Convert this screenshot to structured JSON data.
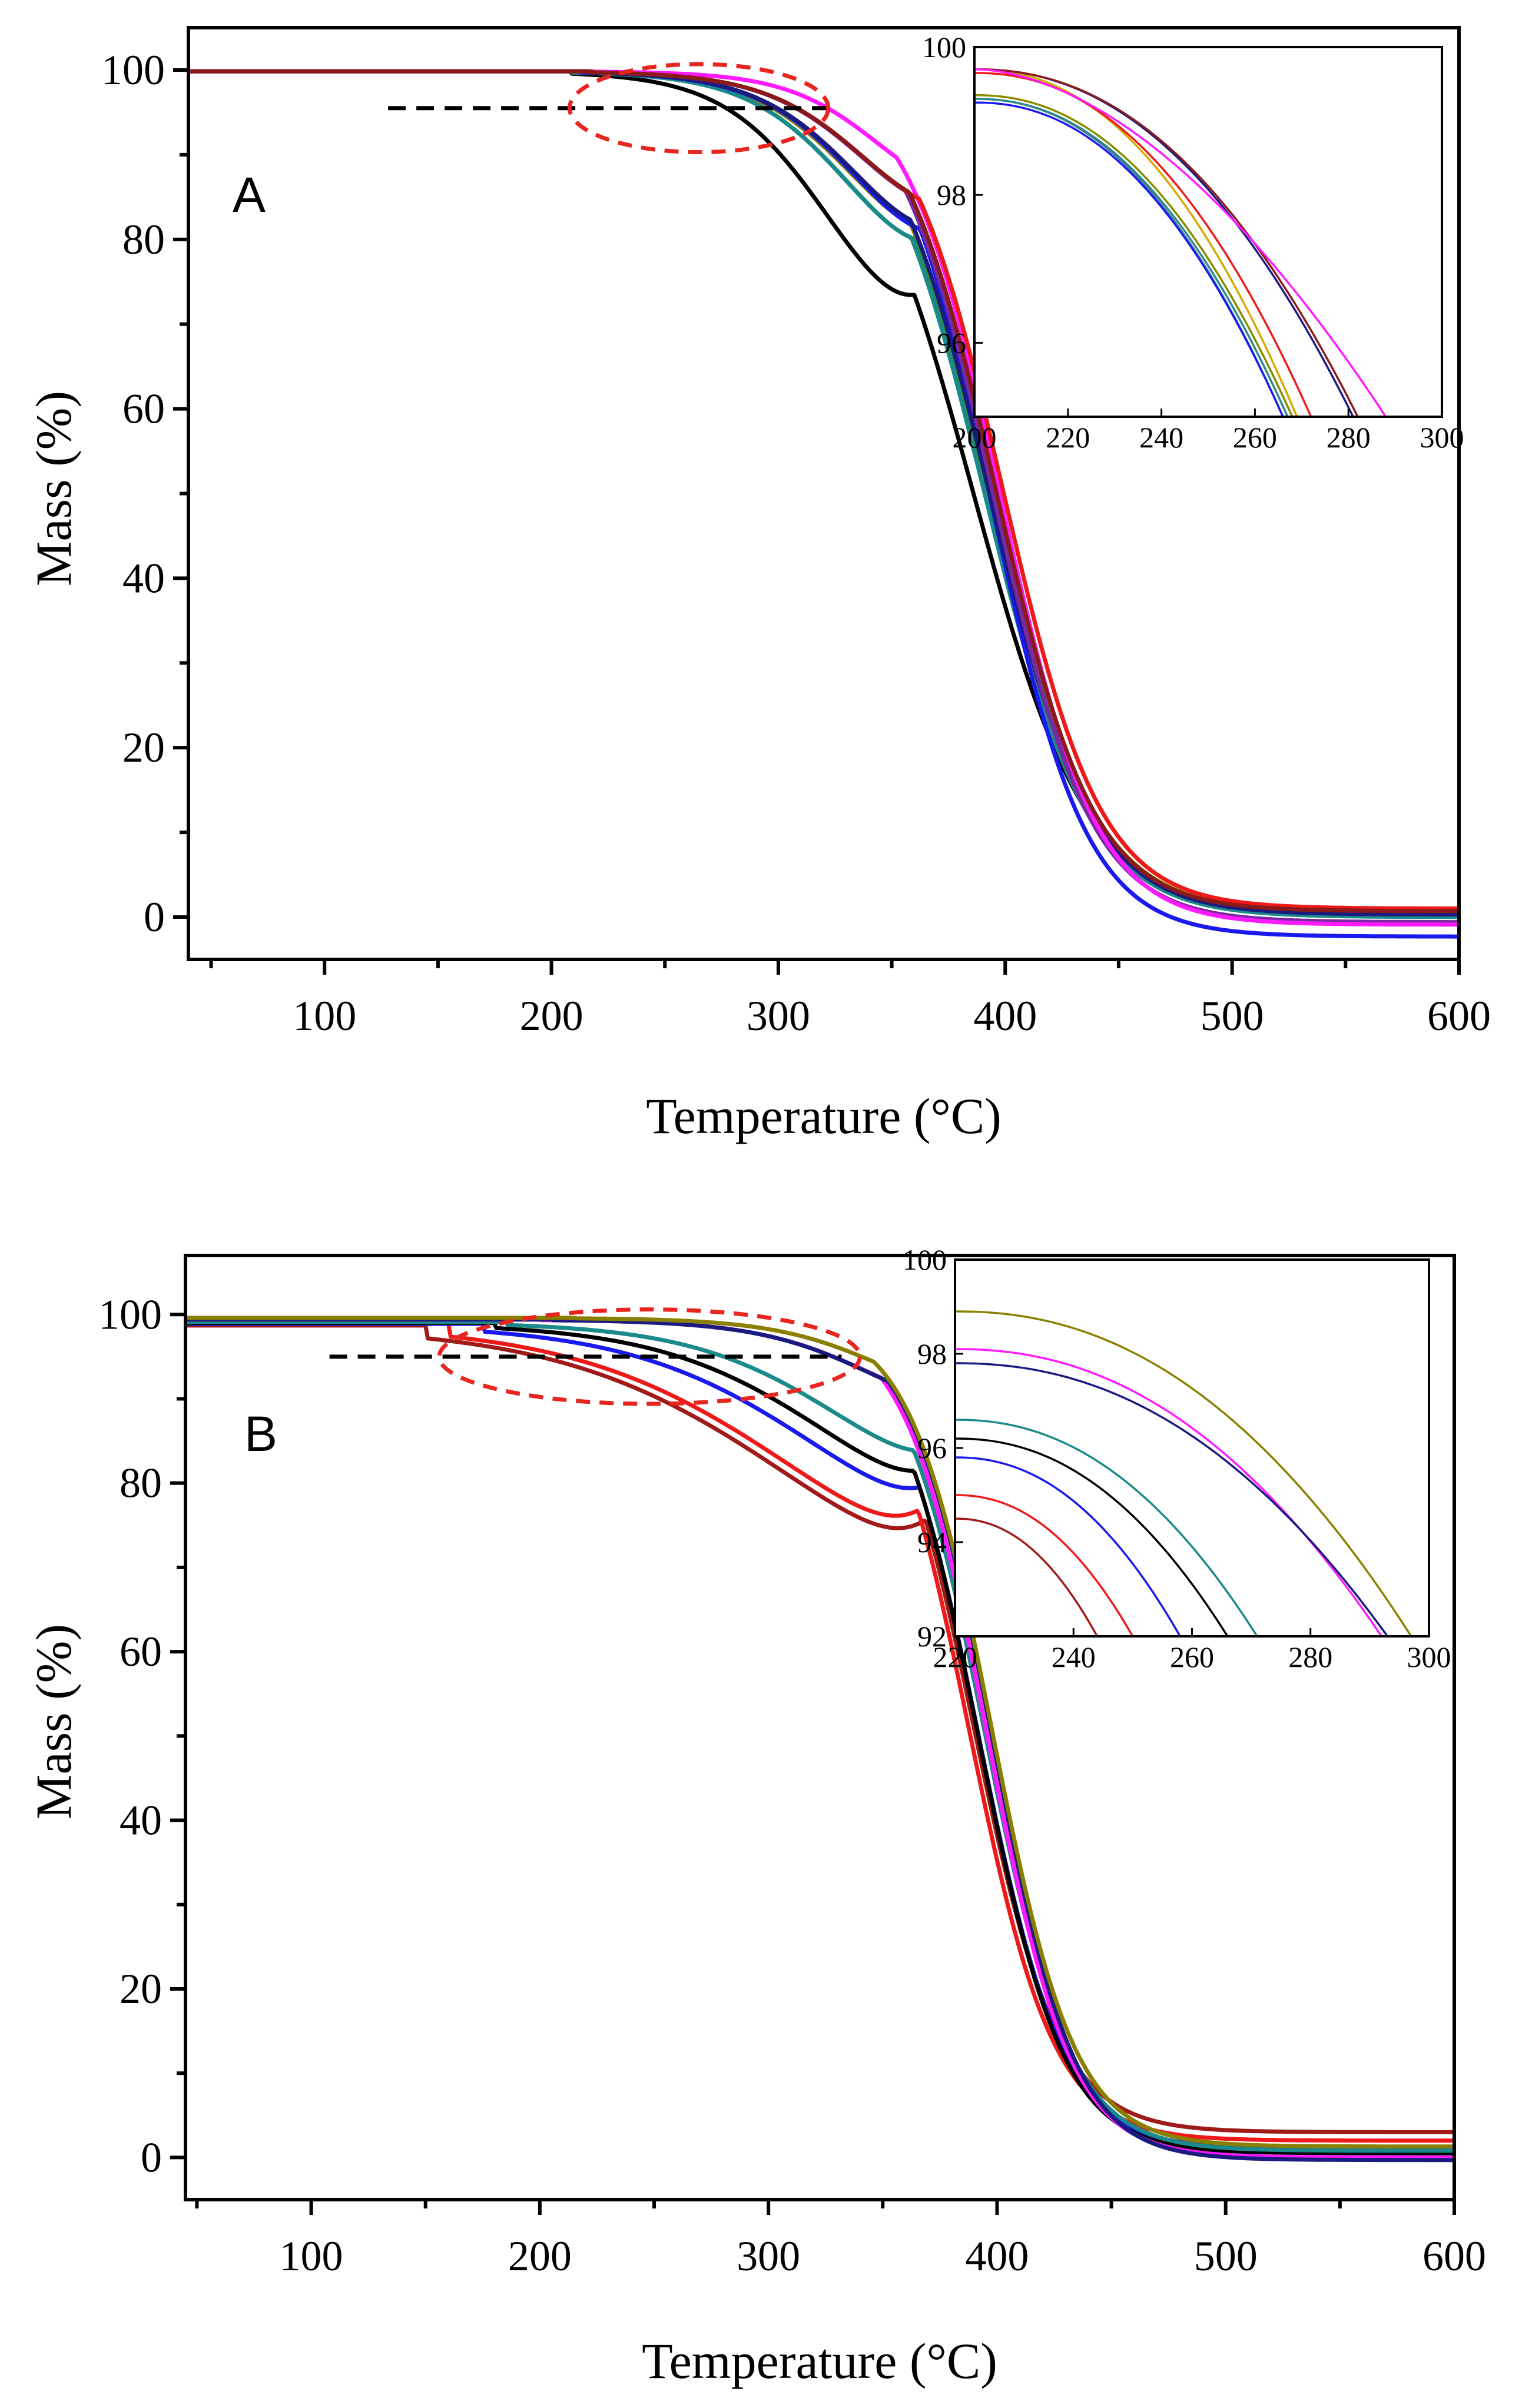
{
  "chart_data": [
    {
      "type": "line",
      "panel_label": "A",
      "xlabel": "Temperature (°C)",
      "ylabel": "Mass (%)",
      "xlim": [
        40,
        600
      ],
      "ylim": [
        -5,
        105
      ],
      "xticks": [
        100,
        200,
        300,
        400,
        500,
        600
      ],
      "yticks": [
        0,
        20,
        40,
        60,
        80,
        100
      ],
      "reference_line": {
        "y": 95.5,
        "x_from": 128,
        "x_to": 325,
        "style": "dashed"
      },
      "highlight_ellipse": {
        "cx": 265,
        "cy": 95.5,
        "rx": 57,
        "ry": 5.2,
        "style": "dashed",
        "color": "#e8261f"
      },
      "series": [
        {
          "name": "black",
          "color": "#000000",
          "onset": 208,
          "mid": 386,
          "k": 25.5,
          "pre": 0.38,
          "tpre": 326,
          "spre": 24,
          "residue": 0.2
        },
        {
          "name": "olive",
          "color": "#8a8000",
          "onset": 208,
          "mid": 393,
          "k": 23,
          "pre": 0.28,
          "tpre": 338,
          "spre": 24,
          "residue": 0.5
        },
        {
          "name": "green",
          "color": "#2f8f2f",
          "onset": 208,
          "mid": 392,
          "k": 23,
          "pre": 0.3,
          "tpre": 336,
          "spre": 24,
          "residue": 0.4
        },
        {
          "name": "teal",
          "color": "#1a8a8a",
          "onset": 208,
          "mid": 391,
          "k": 23,
          "pre": 0.3,
          "tpre": 336,
          "spre": 24,
          "residue": 0.0
        },
        {
          "name": "blue",
          "color": "#1a1aee",
          "onset": 212,
          "mid": 394,
          "k": 21,
          "pre": 0.28,
          "tpre": 340,
          "spre": 24,
          "residue": -2.3
        },
        {
          "name": "navy",
          "color": "#1a1a80",
          "onset": 214,
          "mid": 393,
          "k": 22.5,
          "pre": 0.28,
          "tpre": 340,
          "spre": 24,
          "residue": 0.3
        },
        {
          "name": "purple",
          "color": "#7a2aa0",
          "onset": 215,
          "mid": 395,
          "k": 21.5,
          "pre": 0.24,
          "tpre": 344,
          "spre": 24,
          "residue": -0.6
        },
        {
          "name": "magenta",
          "color": "#ff1aff",
          "onset": 218,
          "mid": 398,
          "k": 21,
          "pre": 0.2,
          "tpre": 350,
          "spre": 22,
          "residue": -0.9
        },
        {
          "name": "red",
          "color": "#ee1a1a",
          "onset": 218,
          "mid": 399,
          "k": 21.5,
          "pre": 0.24,
          "tpre": 344,
          "spre": 24,
          "residue": 1.0
        },
        {
          "name": "darkred",
          "color": "#8a1a1a",
          "onset": 216,
          "mid": 396,
          "k": 21.5,
          "pre": 0.24,
          "tpre": 344,
          "spre": 24,
          "residue": 0.7
        }
      ],
      "inset": {
        "xlim": [
          200,
          300
        ],
        "ylim": [
          95,
          100
        ],
        "xticks": [
          200,
          220,
          240,
          260,
          280,
          300
        ],
        "yticks": [
          96,
          98,
          100
        ],
        "series": [
          {
            "color": "#4a7aa0",
            "start": 99.3,
            "end_x": 266
          },
          {
            "color": "#2a8a8a",
            "start": 99.3,
            "end_x": 267
          },
          {
            "color": "#8a8a00",
            "start": 99.35,
            "end_x": 268
          },
          {
            "color": "#1a1aee",
            "start": 99.25,
            "end_x": 266
          },
          {
            "color": "#d4aa00",
            "start": 99.7,
            "end_x": 269
          },
          {
            "color": "#ee1a1a",
            "start": 99.65,
            "end_x": 272
          },
          {
            "color": "#1a1a80",
            "start": 99.7,
            "end_x": 281
          },
          {
            "color": "#8a1a1a",
            "start": 99.7,
            "end_x": 282
          },
          {
            "color": "#ff1aff",
            "start": 99.7,
            "end_x": 288,
            "curve": 1.8
          }
        ]
      }
    },
    {
      "type": "line",
      "panel_label": "B",
      "xlabel": "Temperature (°C)",
      "ylabel": "Mass (%)",
      "xlim": [
        45,
        600
      ],
      "ylim": [
        -5,
        107
      ],
      "xticks": [
        100,
        200,
        300,
        400,
        500,
        600
      ],
      "yticks": [
        0,
        20,
        40,
        60,
        80,
        100
      ],
      "reference_line": {
        "y": 95,
        "x_from": 108,
        "x_to": 332,
        "style": "dashed"
      },
      "highlight_ellipse": {
        "cx": 248,
        "cy": 95,
        "rx": 92,
        "ry": 5.6,
        "style": "dashed",
        "color": "#e8261f"
      },
      "series": [
        {
          "name": "darkred",
          "color": "#a01a1a",
          "onset": 150,
          "start": 98.7,
          "mid": 390,
          "k": 18.5,
          "pre": 0.4,
          "tpre": 316,
          "spre": 52,
          "residue": 3.0
        },
        {
          "name": "red",
          "color": "#ee1a1a",
          "onset": 160,
          "start": 98.9,
          "mid": 388,
          "k": 18.5,
          "pre": 0.38,
          "tpre": 318,
          "spre": 50,
          "residue": 2.0
        },
        {
          "name": "blue",
          "color": "#1a1aee",
          "onset": 175,
          "start": 98.9,
          "mid": 392,
          "k": 18.5,
          "pre": 0.33,
          "tpre": 330,
          "spre": 44,
          "residue": 1.0
        },
        {
          "name": "black",
          "color": "#000000",
          "onset": 180,
          "start": 99.0,
          "mid": 392,
          "k": 18.5,
          "pre": 0.3,
          "tpre": 335,
          "spre": 40,
          "residue": 0.5
        },
        {
          "name": "teal",
          "color": "#1a8a8a",
          "onset": 185,
          "start": 99.1,
          "mid": 395,
          "k": 18.5,
          "pre": 0.26,
          "tpre": 340,
          "spre": 36,
          "residue": 0.8
        },
        {
          "name": "magenta",
          "color": "#ff1aff",
          "onset": 200,
          "start": 99.4,
          "mid": 396,
          "k": 18,
          "pre": 0.16,
          "tpre": 355,
          "spre": 28,
          "residue": 0.0
        },
        {
          "name": "navy",
          "color": "#1a1a80",
          "onset": 205,
          "start": 99.4,
          "mid": 398,
          "k": 18,
          "pre": 0.16,
          "tpre": 355,
          "spre": 28,
          "residue": -0.3
        },
        {
          "name": "olive",
          "color": "#8a8000",
          "onset": 215,
          "start": 99.6,
          "mid": 398,
          "k": 18,
          "pre": 0.14,
          "tpre": 358,
          "spre": 26,
          "residue": 1.3
        }
      ],
      "inset": {
        "xlim": [
          220,
          300
        ],
        "ylim": [
          92,
          100
        ],
        "xticks": [
          220,
          240,
          260,
          280,
          300
        ],
        "yticks": [
          92,
          94,
          96,
          98,
          100
        ],
        "series": [
          {
            "color": "#8a8000",
            "start": 98.9,
            "end_x": 297
          },
          {
            "color": "#ff1aff",
            "start": 98.1,
            "end_x": 292
          },
          {
            "color": "#1a1a80",
            "start": 97.8,
            "end_x": 293
          },
          {
            "color": "#1a8a8a",
            "start": 96.6,
            "end_x": 271
          },
          {
            "color": "#000000",
            "start": 96.2,
            "end_x": 266
          },
          {
            "color": "#1a1aee",
            "start": 95.8,
            "end_x": 258
          },
          {
            "color": "#ee1a1a",
            "start": 95.0,
            "end_x": 250
          },
          {
            "color": "#a01a1a",
            "start": 94.5,
            "end_x": 244
          }
        ]
      }
    }
  ]
}
